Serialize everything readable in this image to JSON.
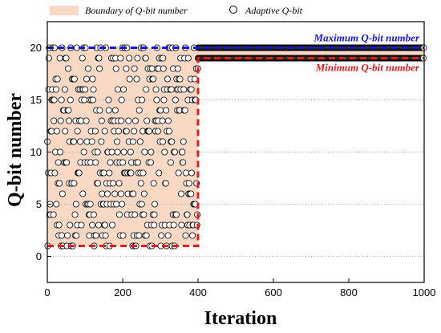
{
  "chart_data": {
    "type": "scatter",
    "xlabel": "Iteration",
    "ylabel": "Q-bit number",
    "xlim": [
      0,
      1000
    ],
    "ylim": [
      -2.5,
      22.5
    ],
    "xticks": [
      0,
      200,
      400,
      600,
      800,
      1000
    ],
    "yticks": [
      0,
      5,
      10,
      15,
      20
    ],
    "grid": "horizontal dotted",
    "legend": {
      "placement": "top",
      "entries": [
        {
          "name": "Boundary of Q-bit number",
          "kind": "area",
          "color": "#f9d9c3"
        },
        {
          "name": "Adaptive Q-bit",
          "kind": "marker",
          "color": "#ffffff"
        }
      ]
    },
    "boundary": {
      "max_line": {
        "x": [
          0,
          1000
        ],
        "y": [
          20,
          20
        ]
      },
      "min_line": {
        "x": [
          0,
          400,
          400,
          1000
        ],
        "y": [
          1,
          1,
          19,
          19
        ]
      },
      "fill_color": "#f9d9c3",
      "max_color": "#1515e6",
      "min_color": "#e61b1b"
    },
    "series": {
      "name": "Adaptive Q-bit",
      "phase1": {
        "x_range": [
          0,
          400
        ],
        "y_range": [
          1,
          20
        ],
        "points": 400
      },
      "phase2": {
        "x_range": [
          400,
          1000
        ],
        "y_values": [
          19,
          20
        ],
        "points": 600
      }
    },
    "annotations": [
      {
        "text": "Maximum Q-bit number",
        "color": "#1515e6"
      },
      {
        "text": "Minimum Q-bit number",
        "color": "#e61b1b"
      }
    ]
  }
}
